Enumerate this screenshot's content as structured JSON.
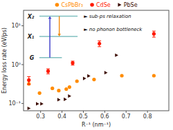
{
  "chart_data": {
    "type": "scatter",
    "xlabel": "R⁻¹ (nm⁻¹)",
    "ylabel": "Energy loss rate (eV/ps)",
    "log": "y",
    "xlim": [
      0.22,
      0.9
    ],
    "ylim": [
      0.065,
      25
    ],
    "xticks": [
      0.3,
      0.4,
      0.5,
      0.6,
      0.7,
      0.8
    ],
    "yticks": [
      {
        "value": 0.1,
        "label": "10⁻¹"
      },
      {
        "value": 1,
        "label": "10⁰"
      },
      {
        "value": 10,
        "label": "10¹"
      }
    ],
    "grid": false,
    "legend": "top",
    "series": [
      {
        "name": "CsPbBr₃",
        "color": "#FF8C00",
        "marker": "circle",
        "x": [
          0.245,
          0.295,
          0.355,
          0.385,
          0.42,
          0.435,
          0.47,
          0.55,
          0.68,
          0.83
        ],
        "values": [
          0.32,
          0.185,
          0.245,
          0.215,
          0.235,
          0.265,
          0.375,
          0.415,
          0.52,
          0.52
        ]
      },
      {
        "name": "CdSe",
        "color": "#FF1A00",
        "marker": "circle",
        "x": [
          0.245,
          0.335,
          0.45,
          0.575,
          0.83
        ],
        "values": [
          0.4,
          0.68,
          1.1,
          3.5,
          6.2
        ],
        "errors": [
          0.09,
          0.1,
          0.13,
          0.6,
          1.1
        ]
      },
      {
        "name": "PbSe",
        "color": "#3B0A00",
        "marker": "triangle-right",
        "x": [
          0.245,
          0.285,
          0.305,
          0.385,
          0.415,
          0.435,
          0.505,
          0.525,
          0.605,
          0.655
        ],
        "values": [
          0.075,
          0.098,
          0.098,
          0.125,
          0.128,
          0.155,
          0.44,
          0.51,
          0.62,
          1.75
        ]
      }
    ],
    "annotations": [
      "► sub-ps relaxation",
      "► no phonon bottleneck"
    ],
    "inset_labels": [
      "X₂",
      "X₁",
      "G"
    ]
  }
}
